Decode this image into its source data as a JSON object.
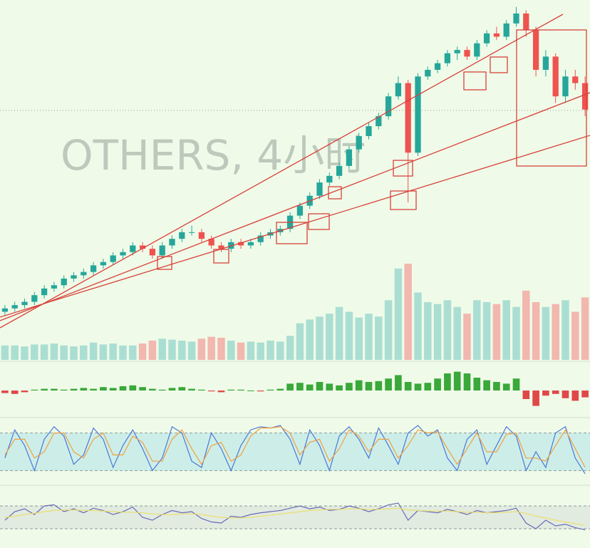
{
  "chart_data": [
    {
      "type": "candlestick",
      "title": "OTHERS, 4小时",
      "up_color": "#26a69a",
      "down_color": "#ef5350",
      "ylim": [
        0,
        100
      ],
      "open": [
        7,
        8,
        9,
        10,
        12,
        14,
        15,
        17,
        18,
        19,
        21,
        22,
        24,
        25,
        27,
        26,
        24,
        27,
        29,
        31,
        31,
        29,
        27,
        26,
        28,
        27,
        28,
        30,
        31,
        32,
        36,
        39,
        42,
        46,
        48,
        51,
        56,
        60,
        63,
        66,
        72,
        76,
        55,
        78,
        80,
        82,
        85,
        86,
        84,
        88,
        91,
        90,
        94,
        97,
        92,
        80,
        84,
        72,
        78,
        76
      ],
      "high": [
        9,
        10,
        11,
        13,
        15,
        16,
        18,
        19,
        20,
        22,
        23,
        25,
        26,
        28,
        28,
        27,
        28,
        30,
        32,
        33,
        32,
        30,
        28,
        29,
        29,
        29,
        31,
        32,
        33,
        37,
        40,
        43,
        47,
        49,
        52,
        57,
        61,
        64,
        67,
        73,
        78,
        77,
        79,
        81,
        83,
        86,
        87,
        87,
        89,
        92,
        93,
        95,
        99,
        98,
        93,
        86,
        85,
        80,
        80,
        78
      ],
      "low": [
        6,
        7,
        8,
        9,
        11,
        13,
        14,
        16,
        17,
        18,
        20,
        21,
        23,
        24,
        25,
        23,
        23,
        26,
        28,
        30,
        28,
        26,
        25,
        25,
        26,
        26,
        27,
        29,
        30,
        31,
        35,
        38,
        41,
        45,
        47,
        50,
        55,
        59,
        62,
        65,
        71,
        40,
        54,
        77,
        79,
        81,
        83,
        83,
        83,
        87,
        89,
        89,
        93,
        90,
        78,
        78,
        70,
        70,
        74,
        66
      ],
      "close": [
        8,
        9,
        10,
        12,
        14,
        15,
        17,
        18,
        19,
        21,
        22,
        24,
        25,
        27,
        26,
        24,
        27,
        29,
        31,
        31,
        29,
        27,
        26,
        28,
        27,
        28,
        30,
        31,
        32,
        36,
        39,
        42,
        46,
        48,
        51,
        56,
        60,
        63,
        66,
        72,
        76,
        55,
        78,
        80,
        82,
        85,
        86,
        84,
        88,
        91,
        90,
        94,
        97,
        92,
        80,
        84,
        72,
        78,
        76,
        68
      ]
    },
    {
      "type": "volume",
      "ylim": [
        0,
        100
      ],
      "values": [
        15,
        15,
        14,
        16,
        16,
        17,
        15,
        14,
        15,
        18,
        16,
        17,
        15,
        15,
        17,
        20,
        22,
        21,
        20,
        19,
        22,
        24,
        23,
        20,
        18,
        19,
        18,
        20,
        19,
        25,
        38,
        42,
        45,
        48,
        55,
        50,
        44,
        48,
        45,
        62,
        95,
        100,
        70,
        60,
        58,
        62,
        55,
        48,
        62,
        60,
        58,
        62,
        55,
        72,
        60,
        55,
        58,
        62,
        50,
        65
      ]
    },
    {
      "type": "histogram",
      "ylim": [
        -30,
        30
      ],
      "up_color": "#3aa83a",
      "down_color": "#e04848",
      "values": [
        -3,
        -4,
        -2,
        1,
        2,
        2,
        1,
        2,
        3,
        2,
        4,
        3,
        5,
        6,
        4,
        2,
        1,
        3,
        4,
        2,
        1,
        -1,
        -2,
        1,
        1,
        0,
        -1,
        1,
        2,
        8,
        9,
        7,
        10,
        8,
        6,
        9,
        12,
        10,
        11,
        14,
        18,
        10,
        8,
        9,
        14,
        20,
        22,
        20,
        15,
        12,
        10,
        8,
        14,
        -10,
        -18,
        -6,
        -4,
        -9,
        -12,
        -8
      ]
    },
    {
      "type": "line",
      "ylim": [
        0,
        100
      ],
      "band": [
        20,
        80
      ],
      "band_color": "#cdeee8",
      "series": [
        {
          "color": "#4a78d8",
          "values": [
            40,
            85,
            60,
            20,
            70,
            90,
            75,
            30,
            45,
            88,
            70,
            25,
            60,
            85,
            55,
            20,
            40,
            90,
            80,
            35,
            25,
            80,
            55,
            20,
            60,
            85,
            90,
            88,
            92,
            70,
            30,
            85,
            60,
            20,
            75,
            90,
            70,
            40,
            88,
            60,
            30,
            80,
            92,
            75,
            85,
            40,
            20,
            70,
            85,
            30,
            60,
            90,
            75,
            20,
            50,
            25,
            80,
            90,
            40,
            15
          ]
        },
        {
          "color": "#f0a040",
          "values": [
            45,
            70,
            70,
            40,
            50,
            80,
            80,
            50,
            40,
            70,
            80,
            45,
            45,
            75,
            65,
            35,
            35,
            70,
            85,
            55,
            30,
            60,
            65,
            35,
            45,
            75,
            88,
            88,
            90,
            80,
            45,
            65,
            70,
            35,
            55,
            85,
            75,
            50,
            70,
            70,
            40,
            60,
            85,
            80,
            82,
            55,
            30,
            55,
            80,
            50,
            50,
            78,
            80,
            40,
            40,
            35,
            60,
            85,
            55,
            25
          ]
        }
      ]
    },
    {
      "type": "line",
      "ylim": [
        0,
        100
      ],
      "band": [
        30,
        70
      ],
      "band_color": "#e2ebe0",
      "series": [
        {
          "color": "#6a6ab8",
          "values": [
            45,
            60,
            65,
            55,
            70,
            72,
            60,
            65,
            58,
            66,
            62,
            55,
            60,
            68,
            50,
            45,
            55,
            62,
            58,
            60,
            48,
            42,
            40,
            52,
            50,
            55,
            58,
            60,
            62,
            66,
            70,
            65,
            68,
            62,
            64,
            70,
            66,
            60,
            65,
            72,
            75,
            45,
            62,
            60,
            58,
            64,
            60,
            55,
            62,
            58,
            60,
            62,
            66,
            40,
            30,
            45,
            35,
            38,
            32,
            28
          ]
        },
        {
          "color": "#e8e070",
          "values": [
            50,
            52,
            55,
            57,
            60,
            62,
            63,
            63,
            62,
            62,
            61,
            60,
            59,
            59,
            58,
            56,
            55,
            55,
            56,
            56,
            55,
            52,
            50,
            49,
            49,
            50,
            52,
            54,
            56,
            58,
            60,
            62,
            63,
            64,
            64,
            65,
            65,
            64,
            64,
            65,
            66,
            63,
            62,
            61,
            61,
            61,
            60,
            59,
            59,
            58,
            58,
            59,
            60,
            57,
            52,
            49,
            45,
            42,
            39,
            36
          ]
        }
      ]
    }
  ]
}
